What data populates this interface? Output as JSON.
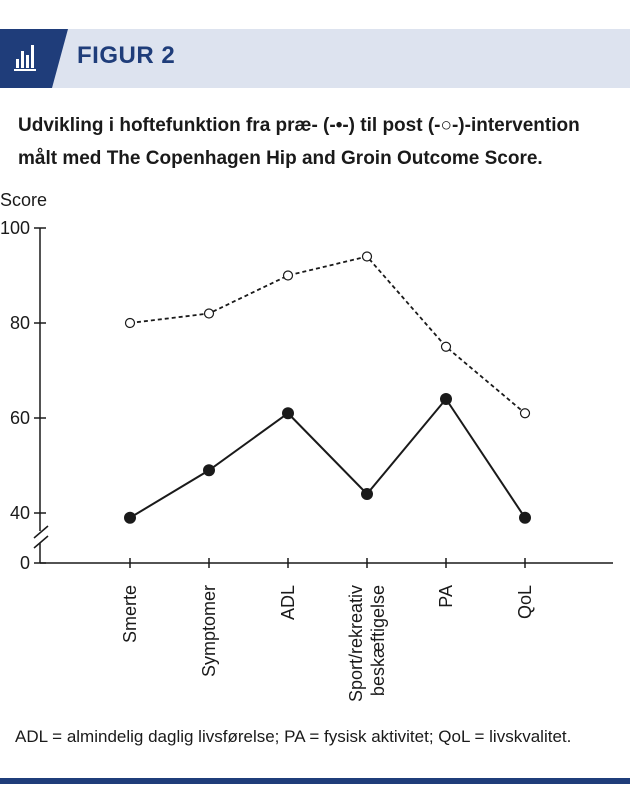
{
  "figure": {
    "label": "FIGUR 2",
    "caption_line1": "Udvikling i hoftefunktion fra præ- (-•-) til post (-○-)-intervention",
    "caption_line2": "målt med The Copenhagen Hip and Groin Outcome Score.",
    "icon": "bar-chart-icon"
  },
  "footnote": "ADL = almindelig daglig livsførelse; PA = fysisk aktivitet; QoL = livskvalitet.",
  "colors": {
    "brand": "#1f3d7a",
    "header_band": "#dde3ef",
    "series": "#1a1a1a"
  },
  "chart_data": {
    "type": "line",
    "ylabel": "Score",
    "yticks": [
      0,
      40,
      60,
      80,
      100
    ],
    "ylim": [
      0,
      100
    ],
    "axis_break": "between 0 and 40",
    "categories": [
      "Smerte",
      "Symptomer",
      "ADL",
      "Sport/rekreativ beskæftigelse",
      "PA",
      "QoL"
    ],
    "series": [
      {
        "marker": "filled-circle",
        "line": "solid",
        "values": [
          39,
          49,
          61,
          44,
          64,
          39
        ]
      },
      {
        "marker": "open-circle",
        "line": "dashed",
        "values": [
          80,
          82,
          90,
          94,
          75,
          61
        ]
      }
    ],
    "grid": false
  }
}
